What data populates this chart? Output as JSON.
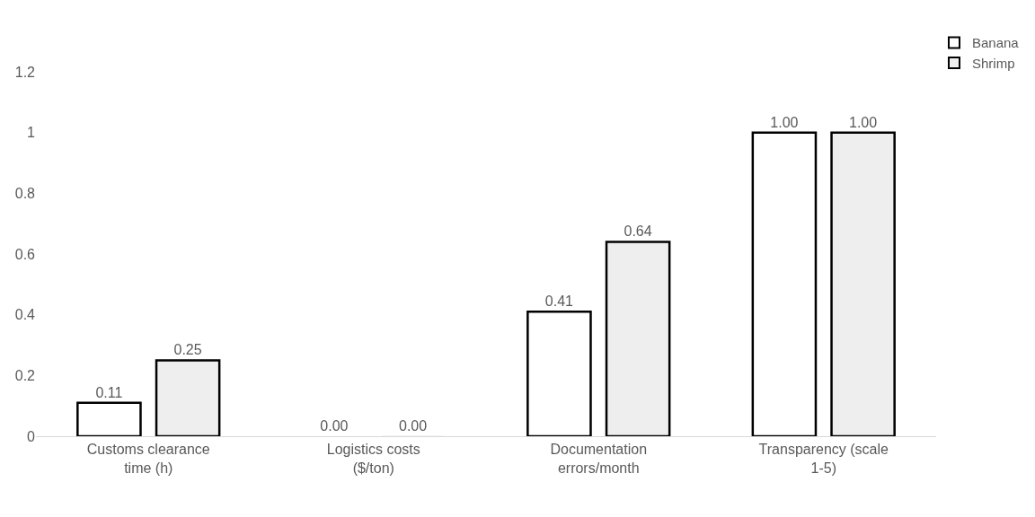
{
  "chart_data": {
    "type": "bar",
    "categories": [
      "Customs clearance time (h)",
      "Logistics costs ($/ton)",
      "Documentation errors/month",
      "Transparency (scale 1-5)"
    ],
    "series": [
      {
        "name": "Banana",
        "color": "#ffffff",
        "values": [
          0.11,
          0,
          0.41,
          1.0
        ],
        "value_labels": [
          "0.11",
          "0.00",
          "0.41",
          "1.00"
        ]
      },
      {
        "name": "Shrimp",
        "color": "#eeeeee",
        "values": [
          0.25,
          0,
          0.64,
          1.0
        ],
        "value_labels": [
          "0.25",
          "0.00",
          "0.64",
          "1.00"
        ]
      }
    ],
    "ylim": [
      0,
      1.2
    ],
    "yticks": [
      0,
      0.2,
      0.4,
      0.6,
      0.8,
      1,
      1.2
    ],
    "grid": false,
    "legend": "top right"
  }
}
